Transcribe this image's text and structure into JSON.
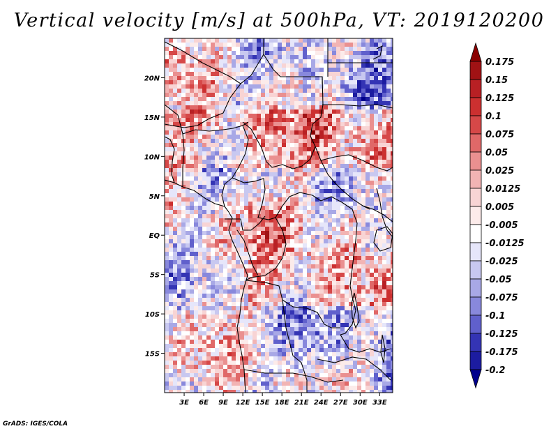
{
  "title": "Vertical velocity [m/s] at 500hPa, VT: 2019120200",
  "footer": "GrADS: IGES/COLA",
  "chart_data": {
    "type": "heatmap",
    "variable": "Vertical velocity",
    "units": "m/s",
    "level": "500hPa",
    "valid_time": "2019120200",
    "lon_range": [
      0,
      35
    ],
    "lat_range": [
      -20,
      25
    ],
    "x_ticks": [
      "3E",
      "6E",
      "9E",
      "12E",
      "15E",
      "18E",
      "21E",
      "24E",
      "27E",
      "30E",
      "33E"
    ],
    "x_tick_values": [
      3,
      6,
      9,
      12,
      15,
      18,
      21,
      24,
      27,
      30,
      33
    ],
    "y_ticks": [
      "20N",
      "15N",
      "10N",
      "5N",
      "EQ",
      "5S",
      "10S",
      "15S"
    ],
    "y_tick_values": [
      20,
      15,
      10,
      5,
      0,
      -5,
      -10,
      -15
    ],
    "colorbar": {
      "levels": [
        "0.175",
        "0.15",
        "0.125",
        "0.1",
        "0.075",
        "0.05",
        "0.025",
        "0.0125",
        "0.005",
        "-0.005",
        "-0.0125",
        "-0.025",
        "-0.05",
        "-0.075",
        "-0.1",
        "-0.125",
        "-0.175",
        "-0.2"
      ],
      "colors": [
        "#8b0000",
        "#a01214",
        "#b82024",
        "#cc3030",
        "#d64848",
        "#e06868",
        "#ea9090",
        "#f2b4b4",
        "#f8d4d4",
        "#fcebea",
        "#ffffff",
        "#e6e6fa",
        "#c8c8f0",
        "#a8a8e6",
        "#8888dc",
        "#6060cc",
        "#3434b4",
        "#1c1ca0",
        "#00008c"
      ]
    }
  }
}
